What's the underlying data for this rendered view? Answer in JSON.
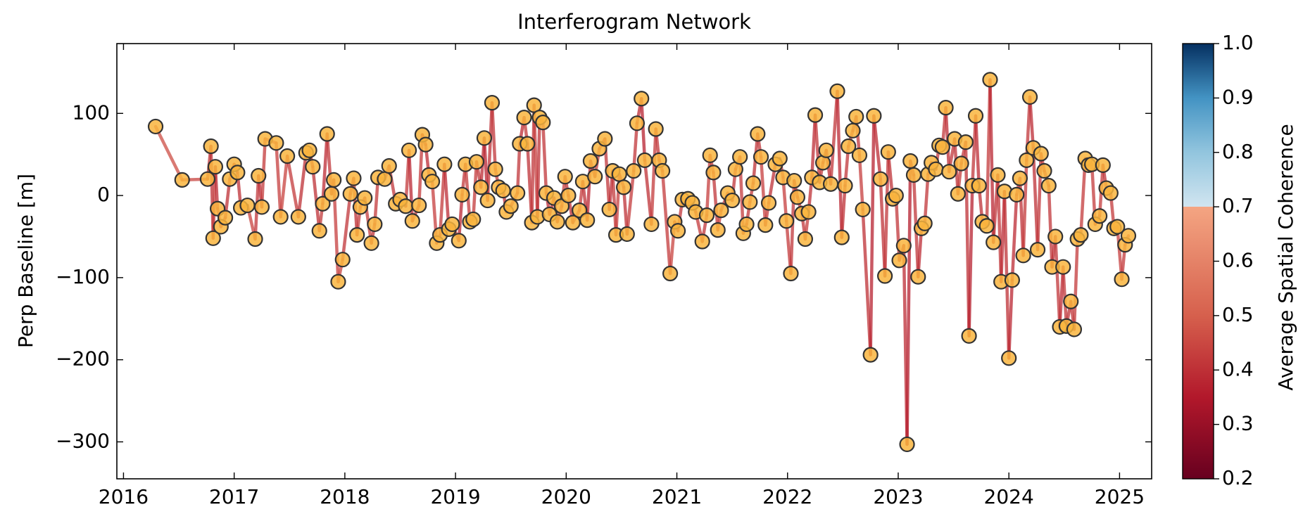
{
  "chart_data": {
    "type": "network",
    "title": "Interferogram Network",
    "ylabel": "Perp Baseline [m]",
    "colorbar_label": "Average Spatial Coherence",
    "xlim": [
      2015.94,
      2025.29
    ],
    "xticks": [
      2016,
      2017,
      2018,
      2019,
      2020,
      2021,
      2022,
      2023,
      2024,
      2025
    ],
    "ylim": [
      -345,
      185
    ],
    "yticks": [
      {
        "value": 100,
        "label": "100"
      },
      0,
      {
        "value": -100,
        "label": "−100"
      },
      {
        "value": -200,
        "label": "−200"
      },
      {
        "value": -300,
        "label": "−300"
      }
    ],
    "clim": [
      0.2,
      1.0
    ],
    "cticks": [
      0.2,
      0.3,
      0.4,
      0.5,
      0.6,
      0.7,
      0.8,
      0.9,
      {
        "value": 1.0,
        "label": "1.0"
      }
    ],
    "colormap": [
      {
        "value": 0.2,
        "color": "#67001f"
      },
      {
        "value": 0.35,
        "color": "#b2182b"
      },
      {
        "value": 0.5,
        "color": "#d6604d"
      },
      {
        "value": 0.7,
        "color": "#f4a582"
      },
      {
        "value": 0.7,
        "color": "#d1e5f0"
      },
      {
        "value": 0.8,
        "color": "#92c5de"
      },
      {
        "value": 0.9,
        "color": "#4393c3"
      },
      {
        "value": 1.0,
        "color": "#053061"
      }
    ],
    "point_color": "#f9b53e",
    "point_edge_color": "#333333",
    "x": [
      2016.29,
      2016.53,
      2016.76,
      2016.79,
      2016.81,
      2016.83,
      2016.85,
      2016.88,
      2016.92,
      2016.96,
      2017.0,
      2017.03,
      2017.06,
      2017.12,
      2017.19,
      2017.22,
      2017.25,
      2017.28,
      2017.38,
      2017.42,
      2017.48,
      2017.58,
      2017.65,
      2017.68,
      2017.71,
      2017.77,
      2017.8,
      2017.84,
      2017.88,
      2017.9,
      2017.94,
      2017.98,
      2018.05,
      2018.08,
      2018.11,
      2018.14,
      2018.18,
      2018.24,
      2018.27,
      2018.3,
      2018.36,
      2018.4,
      2018.46,
      2018.5,
      2018.55,
      2018.58,
      2018.61,
      2018.67,
      2018.7,
      2018.73,
      2018.76,
      2018.79,
      2018.83,
      2018.86,
      2018.9,
      2018.94,
      2018.97,
      2019.03,
      2019.06,
      2019.09,
      2019.13,
      2019.16,
      2019.19,
      2019.23,
      2019.26,
      2019.29,
      2019.33,
      2019.36,
      2019.39,
      2019.43,
      2019.46,
      2019.5,
      2019.56,
      2019.58,
      2019.62,
      2019.65,
      2019.69,
      2019.71,
      2019.74,
      2019.76,
      2019.79,
      2019.82,
      2019.85,
      2019.89,
      2019.92,
      2019.96,
      2019.99,
      2020.02,
      2020.06,
      2020.12,
      2020.15,
      2020.19,
      2020.22,
      2020.26,
      2020.3,
      2020.35,
      2020.39,
      2020.42,
      2020.45,
      2020.48,
      2020.52,
      2020.55,
      2020.61,
      2020.64,
      2020.68,
      2020.71,
      2020.77,
      2020.81,
      2020.84,
      2020.87,
      2020.94,
      2020.98,
      2021.01,
      2021.05,
      2021.1,
      2021.14,
      2021.17,
      2021.23,
      2021.27,
      2021.3,
      2021.33,
      2021.37,
      2021.4,
      2021.46,
      2021.5,
      2021.53,
      2021.57,
      2021.6,
      2021.63,
      2021.66,
      2021.69,
      2021.73,
      2021.76,
      2021.8,
      2021.83,
      2021.89,
      2021.93,
      2021.96,
      2021.99,
      2022.03,
      2022.06,
      2022.09,
      2022.13,
      2022.16,
      2022.19,
      2022.22,
      2022.25,
      2022.29,
      2022.32,
      2022.35,
      2022.39,
      2022.45,
      2022.49,
      2022.52,
      2022.55,
      2022.59,
      2022.62,
      2022.65,
      2022.68,
      2022.75,
      2022.78,
      2022.84,
      2022.88,
      2022.91,
      2022.95,
      2022.98,
      2023.01,
      2023.05,
      2023.08,
      2023.11,
      2023.14,
      2023.18,
      2023.21,
      2023.24,
      2023.27,
      2023.3,
      2023.34,
      2023.37,
      2023.4,
      2023.43,
      2023.46,
      2023.51,
      2023.54,
      2023.57,
      2023.61,
      2023.64,
      2023.67,
      2023.7,
      2023.73,
      2023.76,
      2023.8,
      2023.83,
      2023.86,
      2023.9,
      2023.93,
      2023.96,
      2024.0,
      2024.03,
      2024.07,
      2024.1,
      2024.13,
      2024.16,
      2024.19,
      2024.22,
      2024.26,
      2024.29,
      2024.32,
      2024.36,
      2024.39,
      2024.42,
      2024.46,
      2024.49,
      2024.52,
      2024.56,
      2024.59,
      2024.62,
      2024.65,
      2024.69,
      2024.72,
      2024.75,
      2024.78,
      2024.82,
      2024.85,
      2024.88,
      2024.92,
      2024.95,
      2024.98,
      2025.02,
      2025.05,
      2025.08
    ],
    "values": [
      84,
      19,
      20,
      60,
      -52,
      35,
      -16,
      -38,
      -27,
      20,
      38,
      28,
      -15,
      -12,
      -53,
      24,
      -14,
      69,
      64,
      -26,
      48,
      -26,
      52,
      55,
      35,
      -43,
      -10,
      75,
      2,
      19,
      -105,
      -78,
      2,
      21,
      -48,
      -14,
      -3,
      -58,
      -35,
      22,
      20,
      36,
      -10,
      -5,
      -13,
      55,
      -31,
      -12,
      74,
      62,
      25,
      17,
      -58,
      -48,
      38,
      -41,
      -35,
      -55,
      1,
      38,
      -32,
      -29,
      41,
      10,
      70,
      -6,
      113,
      32,
      10,
      6,
      -20,
      -13,
      3,
      63,
      95,
      63,
      -33,
      110,
      -26,
      95,
      89,
      3,
      -23,
      -3,
      -32,
      -13,
      23,
      0,
      -33,
      -18,
      17,
      -30,
      42,
      23,
      57,
      69,
      -17,
      30,
      -48,
      26,
      10,
      -47,
      30,
      88,
      118,
      43,
      -35,
      81,
      43,
      30,
      -95,
      -32,
      -43,
      -5,
      -4,
      -9,
      -20,
      -56,
      -24,
      49,
      28,
      -42,
      -18,
      3,
      -6,
      32,
      47,
      -46,
      -35,
      -8,
      15,
      75,
      47,
      -36,
      -9,
      38,
      45,
      22,
      -31,
      -95,
      18,
      -2,
      -22,
      -53,
      -20,
      22,
      98,
      16,
      40,
      55,
      14,
      127,
      -51,
      12,
      60,
      79,
      96,
      49,
      -17,
      -194,
      97,
      20,
      -98,
      53,
      -4,
      0,
      -79,
      -61,
      -303,
      42,
      25,
      -99,
      -40,
      -34,
      26,
      40,
      32,
      61,
      59,
      107,
      29,
      69,
      2,
      39,
      65,
      -171,
      12,
      97,
      12,
      -32,
      -37,
      141,
      -57,
      25,
      -105,
      5,
      -198,
      -103,
      1,
      21,
      -73,
      43,
      120,
      58,
      -66,
      51,
      30,
      12,
      -87,
      -50,
      -160,
      -87,
      -159,
      -129,
      -163,
      -53,
      -48,
      45,
      37,
      38,
      -35,
      -25,
      37,
      9,
      3,
      -40,
      -38,
      -102,
      -60,
      -49
    ],
    "coherence": [
      0.46,
      0.44,
      0.41,
      0.4,
      0.42,
      0.39,
      0.41,
      0.43,
      0.4,
      0.42,
      0.41,
      0.4,
      0.43,
      0.44,
      0.41,
      0.39,
      0.42,
      0.45,
      0.43,
      0.44,
      0.42,
      0.4,
      0.41,
      0.38,
      0.4,
      0.42,
      0.39,
      0.41,
      0.4,
      0.43,
      0.44,
      0.41,
      0.39,
      0.4,
      0.42,
      0.41,
      0.43,
      0.4,
      0.42,
      0.41,
      0.39,
      0.41,
      0.43,
      0.4,
      0.42,
      0.38,
      0.41,
      0.42,
      0.4,
      0.39,
      0.41,
      0.43,
      0.4,
      0.42,
      0.39,
      0.41,
      0.4,
      0.38,
      0.41,
      0.42,
      0.4,
      0.42,
      0.41,
      0.39,
      0.37,
      0.4,
      0.41,
      0.42,
      0.4,
      0.39,
      0.38,
      0.4,
      0.41,
      0.39,
      0.42,
      0.4,
      0.41,
      0.43,
      0.4,
      0.42,
      0.41,
      0.39,
      0.4,
      0.42,
      0.41,
      0.43,
      0.4,
      0.39,
      0.41,
      0.42,
      0.4,
      0.38,
      0.41,
      0.42,
      0.4,
      0.41,
      0.39,
      0.42,
      0.43,
      0.41,
      0.4,
      0.42,
      0.41,
      0.39,
      0.37,
      0.4,
      0.42,
      0.41,
      0.43,
      0.42,
      0.44,
      0.42,
      0.41,
      0.4,
      0.43,
      0.44,
      0.42,
      0.41,
      0.43,
      0.42,
      0.41,
      0.43,
      0.42,
      0.44,
      0.41,
      0.4,
      0.42,
      0.43,
      0.41,
      0.42,
      0.4,
      0.41,
      0.43,
      0.42,
      0.4,
      0.42,
      0.41,
      0.43,
      0.42,
      0.41,
      0.4,
      0.42,
      0.41,
      0.43,
      0.4,
      0.39,
      0.41,
      0.42,
      0.4,
      0.39,
      0.41,
      0.38,
      0.4,
      0.41,
      0.42,
      0.4,
      0.41,
      0.43,
      0.4,
      0.37,
      0.39,
      0.4,
      0.41,
      0.4,
      0.42,
      0.41,
      0.4,
      0.39,
      0.36,
      0.4,
      0.41,
      0.39,
      0.42,
      0.41,
      0.4,
      0.41,
      0.42,
      0.4,
      0.41,
      0.39,
      0.41,
      0.4,
      0.42,
      0.41,
      0.4,
      0.37,
      0.41,
      0.39,
      0.4,
      0.41,
      0.42,
      0.38,
      0.4,
      0.41,
      0.39,
      0.4,
      0.38,
      0.39,
      0.41,
      0.4,
      0.42,
      0.41,
      0.39,
      0.4,
      0.41,
      0.42,
      0.4,
      0.41,
      0.4,
      0.41,
      0.39,
      0.41,
      0.4,
      0.41,
      0.42,
      0.4,
      0.42,
      0.41,
      0.43,
      0.42,
      0.41,
      0.42,
      0.4,
      0.41,
      0.42,
      0.41,
      0.43,
      0.42,
      0.44,
      null
    ]
  }
}
